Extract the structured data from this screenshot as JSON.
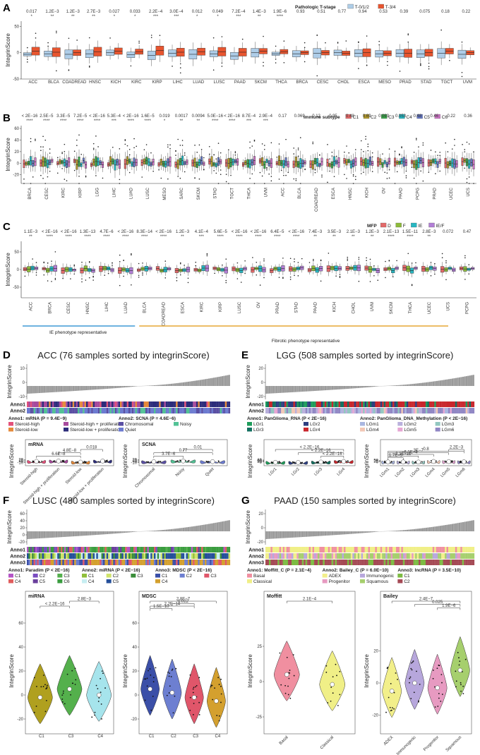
{
  "panels": {
    "A": {
      "label": "A",
      "ylabel": "IntegrinScore",
      "legend_title": "Pathologic T-stage",
      "legend_items": [
        "T-0/1/2",
        "T-3/4"
      ],
      "colors": [
        "#aecde8",
        "#e8552f"
      ],
      "yticks": [
        "50",
        "0",
        "-50"
      ]
    },
    "B": {
      "label": "B",
      "ylabel": "IntegrinScore",
      "legend_title": "Immune subtype",
      "legend_items": [
        "C1",
        "C2",
        "C3",
        "C4",
        "C5",
        "C6"
      ],
      "colors": [
        "#e36a6a",
        "#b39a2c",
        "#3aa64a",
        "#27b7c2",
        "#6477c4",
        "#cc75c4"
      ],
      "yticks": [
        "60",
        "40",
        "20",
        "0",
        "-20"
      ]
    },
    "C": {
      "label": "C",
      "ylabel": "IntegrinScore",
      "legend_title": "MFP",
      "legend_items": [
        "D",
        "F",
        "IE",
        "IE/F"
      ],
      "colors": [
        "#e36a6a",
        "#8dbb3a",
        "#27b7c2",
        "#b27fd6"
      ],
      "yticks": [
        "50",
        "0",
        "-50"
      ],
      "group1": "IE phenotype representative",
      "group2": "Fibrotic phenotype representative"
    },
    "D": {
      "label": "D",
      "title": "ACC (76 samples sorted by integrinScore)",
      "ylabel": "IntegrinScore",
      "anno": [
        "Anno1",
        "Anno2"
      ],
      "yticks": [
        "10",
        "0",
        "-10"
      ],
      "legend1_title": "Anno1: mRNA",
      "legend1_p": "(P = 9.4E−9)",
      "legend1_items": [
        "Steroid-high",
        "Steroid-high + proliferation",
        "Steroid-low",
        "Steroid-low + proliferation"
      ],
      "legend1_colors": [
        "#e3517a",
        "#a74a9c",
        "#e58a3b",
        "#2c2c7a"
      ],
      "legend2_title": "Anno2: SCNA",
      "legend2_p": "(P = 4.6E−6)",
      "legend2_items": [
        "Chromosomal",
        "Noisy",
        "Quiet"
      ],
      "legend2_colors": [
        "#5a4fa3",
        "#52c295",
        "#6c7bd0"
      ],
      "violin1_title": "mRNA",
      "violin2_title": "SCNA",
      "violin1_yticks": [
        "20",
        "10",
        "0",
        "-10"
      ],
      "violin2_yticks": [
        "20",
        "10",
        "0",
        "-10"
      ]
    },
    "E": {
      "label": "E",
      "title": "LGG (508 samples sorted by integrinScore)",
      "ylabel": "IntegrinScore",
      "anno": [
        "Anno1",
        "Anno2"
      ],
      "yticks": [
        "20",
        "0",
        "-20"
      ],
      "legend1_title": "Anno1: PanGlioma_RNA",
      "legend1_p": "(P < 2E−16)",
      "legend1_items": [
        "LGr1",
        "LGr2",
        "LGr3",
        "LGr4"
      ],
      "legend1_colors": [
        "#1e9c5a",
        "#2c3e80",
        "#137060",
        "#c8262c"
      ],
      "legend2_title": "Anno2: PanGlioma_DNA_Methylation",
      "legend2_p": "(P < 2E−16)",
      "legend2_items": [
        "LGm1",
        "LGm2",
        "LGm3",
        "LGm4",
        "LGm5",
        "LGm6"
      ],
      "legend2_colors": [
        "#a9b6e0",
        "#b9b0dc",
        "#92c7c0",
        "#f2c7b5",
        "#e6a6d3",
        "#9086c4"
      ],
      "violin1_yticks": [
        "60",
        "40",
        "20",
        "0"
      ],
      "violin2_yticks": [
        "50",
        "25",
        "0"
      ]
    },
    "F": {
      "label": "F",
      "title": "LUSC (480 samples sorted by integrinScore)",
      "ylabel": "IntegrinScore",
      "anno": [
        "Anno1",
        "Anno2",
        "Anno3"
      ],
      "yticks": [
        "60",
        "40",
        "20",
        "0",
        "-20"
      ],
      "legend1_title": "Anno1: Paradim",
      "legend1_p": "(P < 2E−16)",
      "legend1_items": [
        "C1",
        "C2",
        "C3",
        "C4",
        "C5",
        "C6"
      ],
      "legend1_colors": [
        "#b455c6",
        "#7a4cc0",
        "#54b04c",
        "#e05d5d",
        "#6a3f9c",
        "#3a9c3f"
      ],
      "legend2_title": "Anno2: miRNA",
      "legend2_p": "(P < 2E−16)",
      "legend2_items": [
        "C1",
        "C2",
        "C3",
        "C4",
        "C5"
      ],
      "legend2_colors": [
        "#8fbf3a",
        "#cfe36a",
        "#3a8c3a",
        "#c7eef2",
        "#254f9a"
      ],
      "legend3_title": "Anno3: MDSC",
      "legend3_p": "(P < 2E−16)",
      "legend3_items": [
        "C1",
        "C2",
        "C3",
        "C4"
      ],
      "legend3_colors": [
        "#3b4fa8",
        "#6d7fd1",
        "#e0566a",
        "#d4a02e"
      ],
      "violin1_title": "miRNA",
      "violin2_title": "MDSC",
      "violin1_yticks": [
        "60",
        "40",
        "20",
        "0",
        "-20"
      ],
      "violin2_yticks": [
        "60",
        "40",
        "20",
        "0",
        "-20"
      ]
    },
    "G": {
      "label": "G",
      "title": "PAAD (150 samples sorted by integrinScore)",
      "ylabel": "IntegrinScore",
      "anno": [
        "Anno1",
        "Anno2",
        "Anno3"
      ],
      "yticks": [
        "20",
        "0",
        "-20"
      ],
      "legend1_title": "Anno1: Moffitt_C",
      "legend1_p": "(P = 2.1E−4)",
      "legend1_items": [
        "Basal",
        "Classical"
      ],
      "legend1_colors": [
        "#f08fa0",
        "#f0ef87"
      ],
      "legend2_title": "Anno2: Bailey_C",
      "legend2_p": "(P = 6.0E−10)",
      "legend2_items": [
        "ADEX",
        "Immunogenic",
        "Progenitor",
        "Squamous"
      ],
      "legend2_colors": [
        "#f2ef8a",
        "#b7a7dc",
        "#e79ac1",
        "#a6cf6d"
      ],
      "legend3_title": "Anno3: lncRNA",
      "legend3_p": "(P = 3.5E−10)",
      "legend3_items": [
        "C1",
        "C2"
      ],
      "legend3_colors": [
        "#7dbb43",
        "#a54a55"
      ],
      "violin1_title": "Moffitt",
      "violin2_title": "Bailey",
      "violin1_yticks": [
        "25",
        "0",
        "-25"
      ],
      "violin2_yticks": [
        "20",
        "0",
        "-20"
      ]
    }
  },
  "chart_data": [
    {
      "type": "box",
      "panel": "A",
      "categories": [
        "ACC",
        "BLCA",
        "COADREAD",
        "HNSC",
        "KICH",
        "KIRC",
        "KIRP",
        "LIHC",
        "LUAD",
        "LUSC",
        "PAAD",
        "SKCM",
        "THCA",
        "BRCA",
        "CESC",
        "CHOL",
        "ESCA",
        "MESO",
        "PRAD",
        "STAD",
        "TGCT",
        "UVM"
      ],
      "pvalues": [
        "0.017",
        "1.2E−3",
        "1.2E−3",
        "2.7E−3",
        "0.027",
        "0.033",
        "2.2E−4",
        "3.0E−4",
        "0.012",
        "0.049",
        "7.2E−4",
        "1.4E−3",
        "1.9E−6",
        "0.93",
        "0.51",
        "0.77",
        "0.94",
        "0.53",
        "0.39",
        "0.075",
        "0.18",
        "0.22"
      ],
      "stars": [
        "*",
        "**",
        "**",
        "**",
        "*",
        "*",
        "***",
        "***",
        "*",
        "*",
        "***",
        "**",
        "****",
        "",
        "",
        "",
        "",
        "",
        "",
        "",
        "",
        ""
      ],
      "series": [
        {
          "name": "T-0/1/2",
          "medians": [
            -3,
            -2,
            -3,
            -2,
            0,
            -4,
            -5,
            -1,
            -3,
            -2,
            -6,
            0,
            -2,
            -2,
            -1,
            0,
            -1,
            -2,
            -1,
            -2,
            -1,
            -3
          ]
        },
        {
          "name": "T-3/4",
          "medians": [
            3,
            1,
            0,
            2,
            3,
            2,
            4,
            1,
            2,
            2,
            1,
            3,
            2,
            0,
            0,
            -1,
            0,
            -1,
            -1,
            0,
            3,
            0
          ]
        }
      ],
      "ylim": [
        -50,
        60
      ]
    },
    {
      "type": "box",
      "panel": "B",
      "categories": [
        "BRCA",
        "CESC",
        "KIRC",
        "KIRP",
        "LGG",
        "LIHC",
        "LUAD",
        "LUSC",
        "MESO",
        "SARC",
        "SKCM",
        "STAD",
        "TGCT",
        "THCA",
        "UVM",
        "ACC",
        "BLCA",
        "COADREAD",
        "ESCA",
        "HNSC",
        "KICH",
        "OV",
        "PAAD",
        "PCPG",
        "PRAD",
        "UCEC",
        "UCS"
      ],
      "pvalues": [
        "< 2E−16",
        "2.5E−5",
        "3.3E−5",
        "7.2E−5",
        "< 2E−16",
        "5.3E−4",
        "< 2E−16",
        "1.6E−5",
        "0.019",
        "0.0017",
        "0.0094",
        "5.0E−16",
        "< 2E−16",
        "8.7E−4",
        "2.9E−4",
        "0.17",
        "0.069",
        "0.12",
        "0.95",
        "0.48",
        "0.69",
        "0.093",
        "0.053",
        "0.48",
        "0.46",
        "0.22",
        "0.36"
      ],
      "stars": [
        "****",
        "****",
        "****",
        "****",
        "****",
        "***",
        "****",
        "****",
        "*",
        "**",
        "**",
        "****",
        "****",
        "***",
        "***",
        "",
        "",
        "",
        "",
        "",
        "",
        "",
        "",
        "",
        "",
        "",
        ""
      ],
      "ylim": [
        -35,
        65
      ]
    },
    {
      "type": "box",
      "panel": "C",
      "categories": [
        "ACC",
        "BRCA",
        "CESC",
        "HNSC",
        "LIHC",
        "LUAD",
        "BLCA",
        "COADREAD",
        "ESCA",
        "KIRC",
        "KIRP",
        "LUSC",
        "OV",
        "PRAD",
        "STAD",
        "PAAD",
        "KICH",
        "CHOL",
        "UVM",
        "SKCM",
        "THCA",
        "UCEC",
        "UCS",
        "PCPG"
      ],
      "pvalues": [
        "1.1E−3",
        "< 2E−16",
        "< 2E−16",
        "1.3E−13",
        "4.7E−6",
        "< 2E−16",
        "8.3E−14",
        "< 2E−16",
        "1.2E−3",
        "4.1E−4",
        "5.6E−5",
        "< 2E−16",
        "< 2E−16",
        "6.4E−5",
        "< 2E−16",
        "7.4E−3",
        "3.5E−3",
        "2.1E−3",
        "1.2E−3",
        "2.1E−13",
        "1.5E−11",
        "2.8E−3",
        "0.072",
        "0.47"
      ],
      "stars": [
        "**",
        "****",
        "****",
        "****",
        "****",
        "****",
        "****",
        "****",
        "**",
        "***",
        "****",
        "****",
        "****",
        "****",
        "****",
        "**",
        "**",
        "**",
        "**",
        "****",
        "****",
        "**",
        "",
        ""
      ],
      "ylim": [
        -80,
        80
      ]
    },
    {
      "type": "violin",
      "panel": "D",
      "groups": [
        {
          "title": "mRNA",
          "categories": [
            "Steroid-high",
            "Steroid-high + proliferation",
            "Steroid-low",
            "Steroid-low + proliferation"
          ],
          "medians": [
            2,
            6,
            -7,
            6
          ],
          "comparisons": [
            {
              "a": 0,
              "b": 2,
              "p": "6.6E−8"
            },
            {
              "a": 1,
              "b": 2,
              "p": "4.8E−8"
            },
            {
              "a": 2,
              "b": 3,
              "p": "0.018"
            }
          ],
          "ylim": [
            -16,
            26
          ]
        },
        {
          "title": "SCNA",
          "categories": [
            "Chromosomal",
            "Noisy",
            "Quiet"
          ],
          "medians": [
            -2,
            7,
            -1
          ],
          "comparisons": [
            {
              "a": 0,
              "b": 1,
              "p": "3.7E−6"
            },
            {
              "a": 0,
              "b": 2,
              "p": "0.77"
            },
            {
              "a": 1,
              "b": 2,
              "p": "0.01"
            }
          ],
          "ylim": [
            -16,
            26
          ]
        }
      ]
    },
    {
      "type": "violin",
      "panel": "E",
      "groups": [
        {
          "categories": [
            "LGr1",
            "LGr2",
            "LGr3",
            "LGr4"
          ],
          "medians": [
            -8,
            -10,
            0,
            18
          ],
          "comparisons": [
            {
              "a": 2,
              "b": 3,
              "p": "< 2.2E−16"
            },
            {
              "a": 1,
              "b": 3,
              "p": "< 2.2E−16"
            },
            {
              "a": 0,
              "b": 3,
              "p": "< 2.2E−16"
            }
          ],
          "ylim": [
            -25,
            80
          ]
        },
        {
          "categories": [
            "LGm1",
            "LGm2",
            "LGm3",
            "LGm4",
            "LGm5",
            "LGm6"
          ],
          "medians": [
            0,
            0,
            -3,
            15,
            12,
            5
          ],
          "comparisons": [
            {
              "a": 0,
              "b": 1,
              "p": "1.7E−5"
            },
            {
              "a": 0,
              "b": 2,
              "p": "2.1E−11"
            },
            {
              "a": 0,
              "b": 3,
              "p": "6.1E−4"
            },
            {
              "a": 0,
              "b": 4,
              "p": "3E−7"
            },
            {
              "a": 0,
              "b": 5,
              "p": "0.8"
            },
            {
              "a": 4,
              "b": 5,
              "p": "2.2E−3"
            }
          ],
          "ylim": [
            -30,
            80
          ]
        }
      ]
    },
    {
      "type": "violin",
      "panel": "F",
      "groups": [
        {
          "title": "miRNA",
          "categories": [
            "C1",
            "C3",
            "C4"
          ],
          "medians": [
            -2,
            5,
            0
          ],
          "comparisons": [
            {
              "a": 0,
              "b": 1,
              "p": "< 2.2E−16"
            },
            {
              "a": 1,
              "b": 2,
              "p": "2.8E−3"
            }
          ],
          "ylim": [
            -30,
            70
          ]
        },
        {
          "title": "MDSC",
          "categories": [
            "C1",
            "C2",
            "C3",
            "C4"
          ],
          "medians": [
            5,
            2,
            -2,
            -5
          ],
          "comparisons": [
            {
              "a": 0,
              "b": 1,
              "p": "1.5E−10"
            },
            {
              "a": 0,
              "b": 2,
              "p": "2.2E−14"
            },
            {
              "a": 1,
              "b": 2,
              "p": "0.022"
            },
            {
              "a": 0,
              "b": 3,
              "p": "2.8E−7"
            }
          ],
          "ylim": [
            -30,
            70
          ]
        }
      ]
    },
    {
      "type": "violin",
      "panel": "G",
      "groups": [
        {
          "title": "Moffitt",
          "categories": [
            "Basal",
            "Classical"
          ],
          "medians": [
            5,
            -2
          ],
          "comparisons": [
            {
              "a": 0,
              "b": 1,
              "p": "2.1E−4"
            }
          ],
          "ylim": [
            -35,
            50
          ]
        },
        {
          "title": "Bailey",
          "categories": [
            "ADEX",
            "Immunogenic",
            "Progenitor",
            "Squamous"
          ],
          "medians": [
            -5,
            0,
            -3,
            8
          ],
          "comparisons": [
            {
              "a": 2,
              "b": 3,
              "p": "1.9E−6"
            },
            {
              "a": 1,
              "b": 3,
              "p": "0.025"
            },
            {
              "a": 0,
              "b": 3,
              "p": "2.4E−7"
            }
          ],
          "ylim": [
            -30,
            45
          ]
        }
      ]
    }
  ]
}
